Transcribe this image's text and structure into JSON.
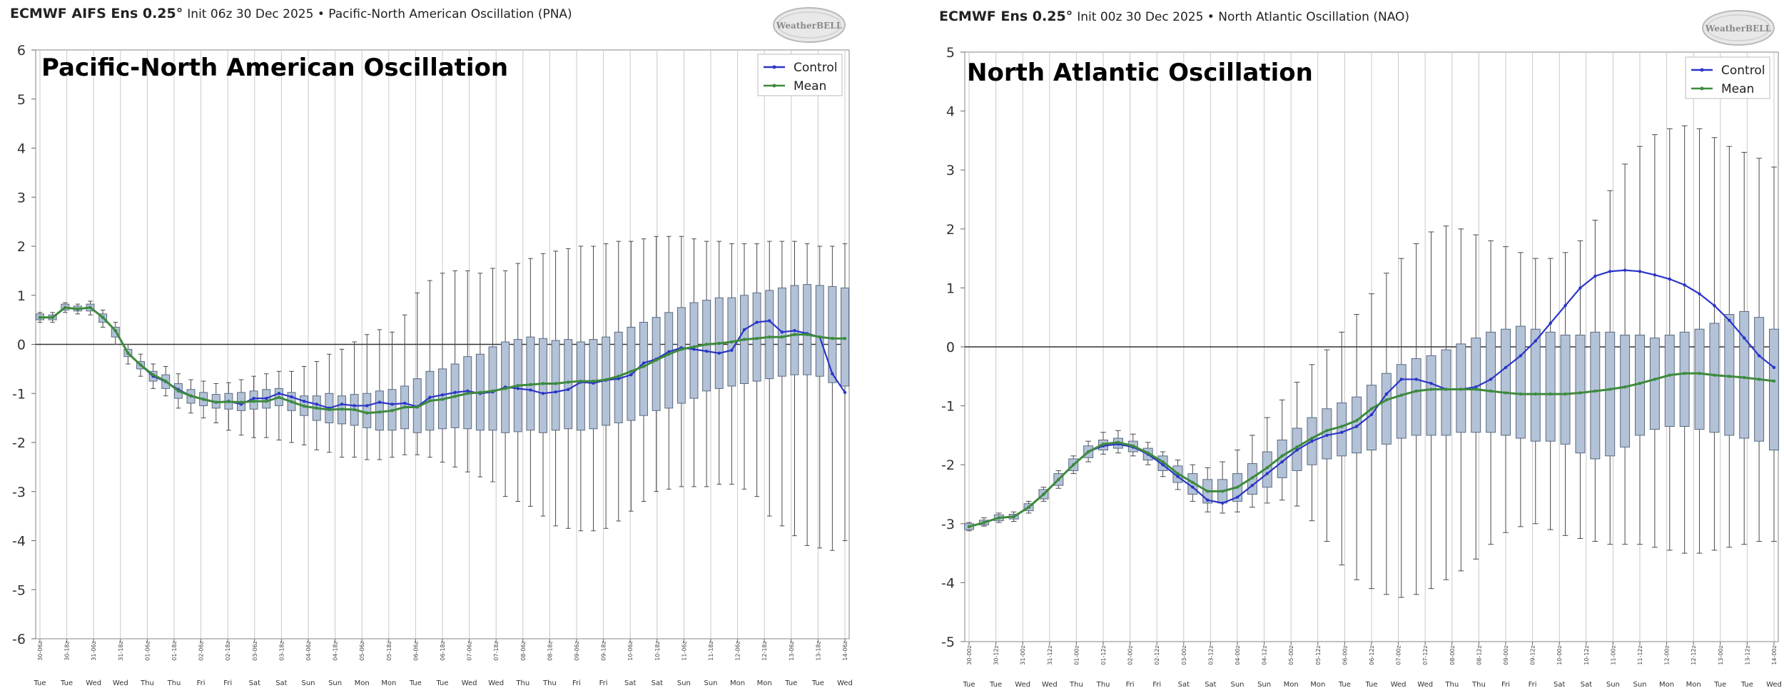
{
  "panels": [
    {
      "header_model": "ECMWF AIFS Ens 0.25°",
      "header_rest": "Init 06z 30 Dec 2025 • Pacific-North American Oscillation (PNA)",
      "logo_text": "WeatherBELL",
      "chart_data": {
        "type": "box",
        "title": "Pacific-North American Oscillation",
        "ylim": [
          -6,
          6
        ],
        "yticks": [
          6,
          5,
          4,
          3,
          2,
          1,
          0,
          -1,
          -2,
          -3,
          -4,
          -5,
          -6
        ],
        "grid": true,
        "legend": [
          "Control",
          "Mean"
        ],
        "legend_position": "top-right",
        "categories": [
          "30-06z",
          "30-18z",
          "31-06z",
          "31-18z",
          "01-06z",
          "01-18z",
          "02-06z",
          "02-18z",
          "03-06z",
          "03-18z",
          "04-06z",
          "04-18z",
          "05-06z",
          "05-18z",
          "06-06z",
          "06-18z",
          "07-06z",
          "07-18z",
          "08-06z",
          "08-18z",
          "09-06z",
          "09-18z",
          "10-06z",
          "10-18z",
          "11-06z",
          "11-18z",
          "12-06z",
          "12-18z",
          "13-06z",
          "13-18z",
          "14-06z"
        ],
        "day_labels": [
          "Tue",
          "Tue",
          "Wed",
          "Wed",
          "Thu",
          "Thu",
          "Fri",
          "Fri",
          "Sat",
          "Sat",
          "Sun",
          "Sun",
          "Mon",
          "Mon",
          "Tue",
          "Tue",
          "Wed",
          "Wed",
          "Thu",
          "Thu",
          "Fri",
          "Fri",
          "Sat",
          "Sat",
          "Sun",
          "Sun",
          "Mon",
          "Mon",
          "Tue",
          "Tue",
          "Wed"
        ],
        "series": [
          {
            "name": "Control",
            "color": "#2b35c8",
            "values": [
              0.55,
              0.55,
              0.75,
              0.72,
              0.75,
              0.55,
              0.28,
              -0.18,
              -0.42,
              -0.65,
              -0.76,
              -0.92,
              -1.05,
              -1.12,
              -1.18,
              -1.16,
              -1.22,
              -1.1,
              -1.1,
              -1.0,
              -1.07,
              -1.16,
              -1.22,
              -1.3,
              -1.22,
              -1.25,
              -1.25,
              -1.18,
              -1.22,
              -1.2,
              -1.27,
              -1.08,
              -1.03,
              -0.98,
              -0.95,
              -1.0,
              -0.97,
              -0.87,
              -0.9,
              -0.93,
              -1.0,
              -0.97,
              -0.92,
              -0.77,
              -0.79,
              -0.73,
              -0.7,
              -0.62,
              -0.38,
              -0.3,
              -0.15,
              -0.07,
              -0.1,
              -0.14,
              -0.18,
              -0.12,
              0.3,
              0.45,
              0.48,
              0.25,
              0.28,
              0.22,
              0.15,
              -0.6,
              -0.98
            ]
          },
          {
            "name": "Mean",
            "color": "#3d8a3d",
            "values": [
              0.55,
              0.55,
              0.75,
              0.72,
              0.75,
              0.55,
              0.28,
              -0.18,
              -0.42,
              -0.62,
              -0.75,
              -0.95,
              -1.05,
              -1.12,
              -1.18,
              -1.17,
              -1.18,
              -1.16,
              -1.16,
              -1.08,
              -1.17,
              -1.26,
              -1.3,
              -1.33,
              -1.32,
              -1.33,
              -1.4,
              -1.38,
              -1.35,
              -1.28,
              -1.28,
              -1.15,
              -1.12,
              -1.06,
              -1.0,
              -0.98,
              -0.95,
              -0.9,
              -0.84,
              -0.82,
              -0.8,
              -0.8,
              -0.77,
              -0.75,
              -0.75,
              -0.72,
              -0.65,
              -0.55,
              -0.45,
              -0.32,
              -0.2,
              -0.1,
              -0.05,
              0.0,
              0.02,
              0.05,
              0.1,
              0.12,
              0.15,
              0.15,
              0.2,
              0.2,
              0.15,
              0.12,
              0.12
            ]
          }
        ],
        "boxes": {
          "q1": [
            0.5,
            0.5,
            0.7,
            0.68,
            0.68,
            0.45,
            0.15,
            -0.25,
            -0.5,
            -0.75,
            -0.9,
            -1.1,
            -1.2,
            -1.25,
            -1.3,
            -1.32,
            -1.35,
            -1.32,
            -1.3,
            -1.25,
            -1.35,
            -1.45,
            -1.55,
            -1.6,
            -1.62,
            -1.65,
            -1.7,
            -1.75,
            -1.75,
            -1.72,
            -1.8,
            -1.75,
            -1.72,
            -1.7,
            -1.72,
            -1.75,
            -1.75,
            -1.8,
            -1.78,
            -1.75,
            -1.8,
            -1.75,
            -1.72,
            -1.75,
            -1.72,
            -1.65,
            -1.6,
            -1.55,
            -1.45,
            -1.35,
            -1.3,
            -1.2,
            -1.1,
            -0.95,
            -0.9,
            -0.85,
            -0.8,
            -0.75,
            -0.7,
            -0.65,
            -0.62,
            -0.62,
            -0.65,
            -0.78,
            -0.85
          ],
          "q3": [
            0.62,
            0.6,
            0.82,
            0.78,
            0.82,
            0.62,
            0.35,
            -0.1,
            -0.35,
            -0.55,
            -0.62,
            -0.8,
            -0.92,
            -0.98,
            -1.02,
            -1.0,
            -0.98,
            -0.95,
            -0.92,
            -0.9,
            -0.98,
            -1.05,
            -1.05,
            -1.0,
            -1.05,
            -1.02,
            -1.0,
            -0.95,
            -0.92,
            -0.85,
            -0.7,
            -0.55,
            -0.5,
            -0.4,
            -0.25,
            -0.2,
            -0.05,
            0.05,
            0.1,
            0.15,
            0.12,
            0.08,
            0.1,
            0.05,
            0.1,
            0.15,
            0.25,
            0.35,
            0.45,
            0.55,
            0.65,
            0.75,
            0.85,
            0.9,
            0.95,
            0.95,
            1.0,
            1.05,
            1.1,
            1.15,
            1.2,
            1.22,
            1.2,
            1.18,
            1.15
          ],
          "min": [
            0.45,
            0.45,
            0.65,
            0.62,
            0.6,
            0.35,
            0.0,
            -0.4,
            -0.65,
            -0.9,
            -1.05,
            -1.3,
            -1.4,
            -1.5,
            -1.6,
            -1.75,
            -1.85,
            -1.9,
            -1.9,
            -1.95,
            -2.0,
            -2.05,
            -2.15,
            -2.2,
            -2.3,
            -2.3,
            -2.35,
            -2.35,
            -2.3,
            -2.25,
            -2.25,
            -2.3,
            -2.4,
            -2.5,
            -2.6,
            -2.7,
            -2.8,
            -3.1,
            -3.2,
            -3.3,
            -3.5,
            -3.7,
            -3.75,
            -3.8,
            -3.8,
            -3.75,
            -3.6,
            -3.4,
            -3.2,
            -3.0,
            -2.95,
            -2.9,
            -2.9,
            -2.9,
            -2.85,
            -2.85,
            -2.95,
            -3.1,
            -3.5,
            -3.7,
            -3.9,
            -4.1,
            -4.15,
            -4.2,
            -4.0
          ],
          "max": [
            0.65,
            0.65,
            0.85,
            0.82,
            0.88,
            0.7,
            0.45,
            0.0,
            -0.2,
            -0.4,
            -0.45,
            -0.6,
            -0.72,
            -0.75,
            -0.8,
            -0.78,
            -0.72,
            -0.65,
            -0.6,
            -0.55,
            -0.55,
            -0.45,
            -0.35,
            -0.2,
            -0.1,
            0.05,
            0.2,
            0.3,
            0.25,
            0.6,
            1.05,
            1.3,
            1.45,
            1.5,
            1.5,
            1.45,
            1.55,
            1.5,
            1.65,
            1.75,
            1.85,
            1.9,
            1.95,
            2.0,
            2.0,
            2.05,
            2.1,
            2.1,
            2.15,
            2.2,
            2.2,
            2.2,
            2.15,
            2.1,
            2.1,
            2.05,
            2.05,
            2.05,
            2.1,
            2.1,
            2.1,
            2.05,
            2.0,
            2.0,
            2.05
          ]
        }
      }
    },
    {
      "header_model": "ECMWF Ens 0.25°",
      "header_rest": "Init 00z 30 Dec 2025 • North Atlantic Oscillation (NAO)",
      "logo_text": "WeatherBELL",
      "chart_data": {
        "type": "box",
        "title": "North Atlantic Oscillation",
        "ylim": [
          -5,
          5
        ],
        "yticks": [
          5,
          4,
          3,
          2,
          1,
          0,
          -1,
          -2,
          -3,
          -4,
          -5
        ],
        "grid": true,
        "legend": [
          "Control",
          "Mean"
        ],
        "legend_position": "top-right",
        "categories": [
          "30-00z",
          "30-12z",
          "31-00z",
          "31-12z",
          "01-00z",
          "01-12z",
          "02-00z",
          "02-12z",
          "03-00z",
          "03-12z",
          "04-00z",
          "04-12z",
          "05-00z",
          "05-12z",
          "06-00z",
          "06-12z",
          "07-00z",
          "07-12z",
          "08-00z",
          "08-12z",
          "09-00z",
          "09-12z",
          "10-00z",
          "10-12z",
          "11-00z",
          "11-12z",
          "12-00z",
          "12-12z",
          "13-00z",
          "13-12z",
          "14-00z"
        ],
        "day_labels": [
          "Tue",
          "Tue",
          "Wed",
          "Wed",
          "Thu",
          "Thu",
          "Fri",
          "Fri",
          "Sat",
          "Sat",
          "Sun",
          "Sun",
          "Mon",
          "Mon",
          "Tue",
          "Tue",
          "Wed",
          "Wed",
          "Thu",
          "Thu",
          "Fri",
          "Fri",
          "Sat",
          "Sat",
          "Sun",
          "Sun",
          "Mon",
          "Mon",
          "Tue",
          "Tue",
          "Wed"
        ],
        "series": [
          {
            "name": "Control",
            "color": "#2b35c8",
            "values": [
              -3.05,
              -2.98,
              -2.9,
              -2.88,
              -2.72,
              -2.5,
              -2.25,
              -2.0,
              -1.78,
              -1.68,
              -1.65,
              -1.7,
              -1.82,
              -2.0,
              -2.2,
              -2.38,
              -2.6,
              -2.65,
              -2.55,
              -2.35,
              -2.15,
              -1.95,
              -1.75,
              -1.6,
              -1.5,
              -1.45,
              -1.35,
              -1.15,
              -0.8,
              -0.55,
              -0.55,
              -0.62,
              -0.72,
              -0.72,
              -0.68,
              -0.55,
              -0.35,
              -0.15,
              0.1,
              0.4,
              0.7,
              1.0,
              1.2,
              1.28,
              1.3,
              1.28,
              1.22,
              1.15,
              1.05,
              0.9,
              0.7,
              0.45,
              0.15,
              -0.15,
              -0.35
            ]
          },
          {
            "name": "Mean",
            "color": "#3d8a3d",
            "values": [
              -3.05,
              -2.98,
              -2.9,
              -2.88,
              -2.72,
              -2.5,
              -2.25,
              -2.0,
              -1.78,
              -1.65,
              -1.62,
              -1.68,
              -1.8,
              -1.95,
              -2.15,
              -2.3,
              -2.45,
              -2.45,
              -2.38,
              -2.22,
              -2.05,
              -1.85,
              -1.7,
              -1.55,
              -1.42,
              -1.35,
              -1.25,
              -1.05,
              -0.9,
              -0.82,
              -0.75,
              -0.72,
              -0.72,
              -0.72,
              -0.72,
              -0.75,
              -0.78,
              -0.8,
              -0.8,
              -0.8,
              -0.8,
              -0.78,
              -0.75,
              -0.72,
              -0.68,
              -0.62,
              -0.55,
              -0.48,
              -0.45,
              -0.45,
              -0.48,
              -0.5,
              -0.52,
              -0.55,
              -0.58
            ]
          }
        ],
        "boxes": {
          "q1": [
            -3.1,
            -3.02,
            -2.95,
            -2.92,
            -2.78,
            -2.58,
            -2.35,
            -2.1,
            -1.88,
            -1.75,
            -1.72,
            -1.78,
            -1.92,
            -2.1,
            -2.3,
            -2.5,
            -2.65,
            -2.65,
            -2.62,
            -2.5,
            -2.38,
            -2.22,
            -2.1,
            -2.0,
            -1.9,
            -1.85,
            -1.8,
            -1.75,
            -1.65,
            -1.55,
            -1.5,
            -1.5,
            -1.5,
            -1.45,
            -1.45,
            -1.45,
            -1.5,
            -1.55,
            -1.6,
            -1.6,
            -1.65,
            -1.8,
            -1.9,
            -1.85,
            -1.7,
            -1.5,
            -1.4,
            -1.35,
            -1.35,
            -1.4,
            -1.45,
            -1.5,
            -1.55,
            -1.6,
            -1.75
          ],
          "q3": [
            -3.0,
            -2.94,
            -2.85,
            -2.84,
            -2.66,
            -2.42,
            -2.15,
            -1.9,
            -1.68,
            -1.58,
            -1.55,
            -1.6,
            -1.72,
            -1.85,
            -2.02,
            -2.15,
            -2.25,
            -2.25,
            -2.15,
            -1.98,
            -1.78,
            -1.58,
            -1.38,
            -1.2,
            -1.05,
            -0.95,
            -0.85,
            -0.65,
            -0.45,
            -0.3,
            -0.2,
            -0.15,
            -0.05,
            0.05,
            0.15,
            0.25,
            0.3,
            0.35,
            0.3,
            0.25,
            0.2,
            0.2,
            0.25,
            0.25,
            0.2,
            0.2,
            0.15,
            0.2,
            0.25,
            0.3,
            0.4,
            0.55,
            0.6,
            0.5,
            0.3
          ],
          "min": [
            -3.12,
            -3.04,
            -2.98,
            -2.96,
            -2.82,
            -2.62,
            -2.4,
            -2.15,
            -1.95,
            -1.82,
            -1.8,
            -1.85,
            -2.0,
            -2.2,
            -2.42,
            -2.62,
            -2.8,
            -2.82,
            -2.8,
            -2.72,
            -2.65,
            -2.6,
            -2.7,
            -2.95,
            -3.3,
            -3.7,
            -3.95,
            -4.1,
            -4.2,
            -4.25,
            -4.2,
            -4.1,
            -3.95,
            -3.8,
            -3.6,
            -3.35,
            -3.15,
            -3.05,
            -3.0,
            -3.1,
            -3.2,
            -3.25,
            -3.3,
            -3.35,
            -3.35,
            -3.35,
            -3.4,
            -3.45,
            -3.5,
            -3.5,
            -3.45,
            -3.4,
            -3.35,
            -3.3,
            -3.3
          ],
          "max": [
            -2.98,
            -2.9,
            -2.82,
            -2.8,
            -2.62,
            -2.38,
            -2.1,
            -1.85,
            -1.6,
            -1.45,
            -1.42,
            -1.48,
            -1.62,
            -1.78,
            -1.92,
            -2.0,
            -2.05,
            -1.95,
            -1.75,
            -1.5,
            -1.2,
            -0.9,
            -0.6,
            -0.3,
            -0.05,
            0.25,
            0.55,
            0.9,
            1.25,
            1.5,
            1.75,
            1.95,
            2.05,
            2.0,
            1.9,
            1.8,
            1.7,
            1.6,
            1.5,
            1.5,
            1.6,
            1.8,
            2.15,
            2.65,
            3.1,
            3.4,
            3.6,
            3.7,
            3.75,
            3.7,
            3.55,
            3.4,
            3.3,
            3.2,
            3.05
          ]
        }
      }
    }
  ]
}
